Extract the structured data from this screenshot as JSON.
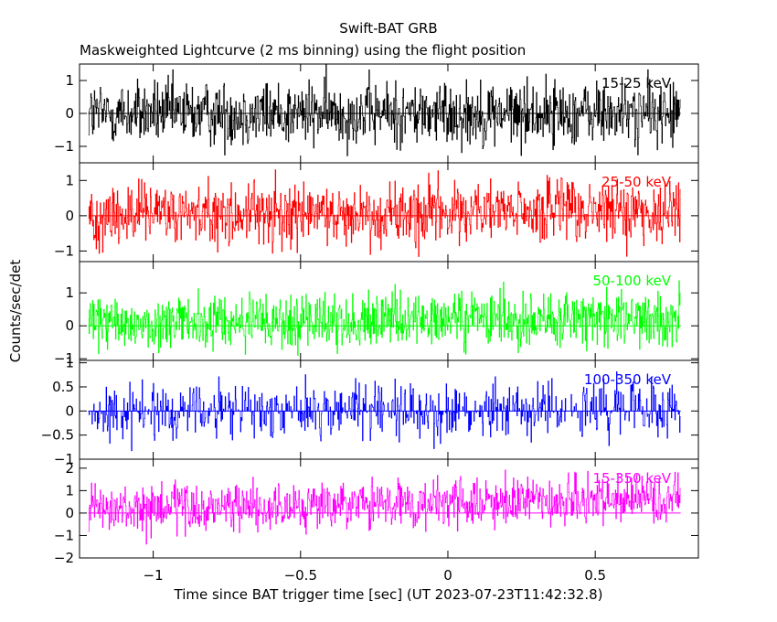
{
  "chart_data": {
    "type": "line",
    "title": "Swift-BAT GRB",
    "subtitle": "Maskweighted Lightcurve (2 ms binning) using the flight position",
    "xlabel": "Time since BAT trigger time [sec] (UT 2023-07-23T11:42:32.8)",
    "ylabel": "Counts/sec/det",
    "xlim": [
      -1.25,
      0.85
    ],
    "x_ticks": [
      -1,
      -0.5,
      0,
      0.5
    ],
    "x_tick_labels": [
      "−1",
      "−0.5",
      "0",
      "0.5"
    ],
    "data_x_range": [
      -1.22,
      0.79
    ],
    "bin_width_sec": 0.002,
    "grid": false,
    "panels": [
      {
        "band": "15-25 keV",
        "color": "#000000",
        "ylim": [
          -1.5,
          1.5
        ],
        "y_ticks": [
          -1,
          0,
          1
        ],
        "y_tick_labels": [
          "−1",
          "0",
          "1"
        ],
        "amplitude": 0.7,
        "trend": [
          0.0,
          0.0
        ]
      },
      {
        "band": "25-50 keV",
        "color": "#ff0000",
        "ylim": [
          -1.3,
          1.5
        ],
        "y_ticks": [
          -1,
          0,
          1
        ],
        "y_tick_labels": [
          "−1",
          "0",
          "1"
        ],
        "amplitude": 0.65,
        "trend": [
          0.0,
          0.15
        ]
      },
      {
        "band": "50-100 keV",
        "color": "#00ff00",
        "ylim": [
          -1.05,
          1.95
        ],
        "y_ticks": [
          -1,
          0,
          1
        ],
        "y_tick_labels": [
          "−1",
          "0",
          "1"
        ],
        "amplitude": 0.6,
        "trend": [
          0.05,
          0.25
        ]
      },
      {
        "band": "100-350 keV",
        "color": "#0000ff",
        "ylim": [
          -1.0,
          1.05
        ],
        "y_ticks": [
          -1,
          -0.5,
          0,
          0.5,
          1
        ],
        "y_tick_labels": [
          "−1",
          "−0.5",
          "0",
          "0.5",
          "1"
        ],
        "amplitude": 0.45,
        "trend": [
          0.0,
          0.05
        ]
      },
      {
        "band": "15-350 keV",
        "color": "#ff00ff",
        "ylim": [
          -2.0,
          2.4
        ],
        "y_ticks": [
          -2,
          -1,
          0,
          1,
          2
        ],
        "y_tick_labels": [
          "−2",
          "−1",
          "0",
          "1",
          "2"
        ],
        "amplitude": 0.75,
        "trend": [
          0.1,
          0.6
        ]
      }
    ]
  }
}
